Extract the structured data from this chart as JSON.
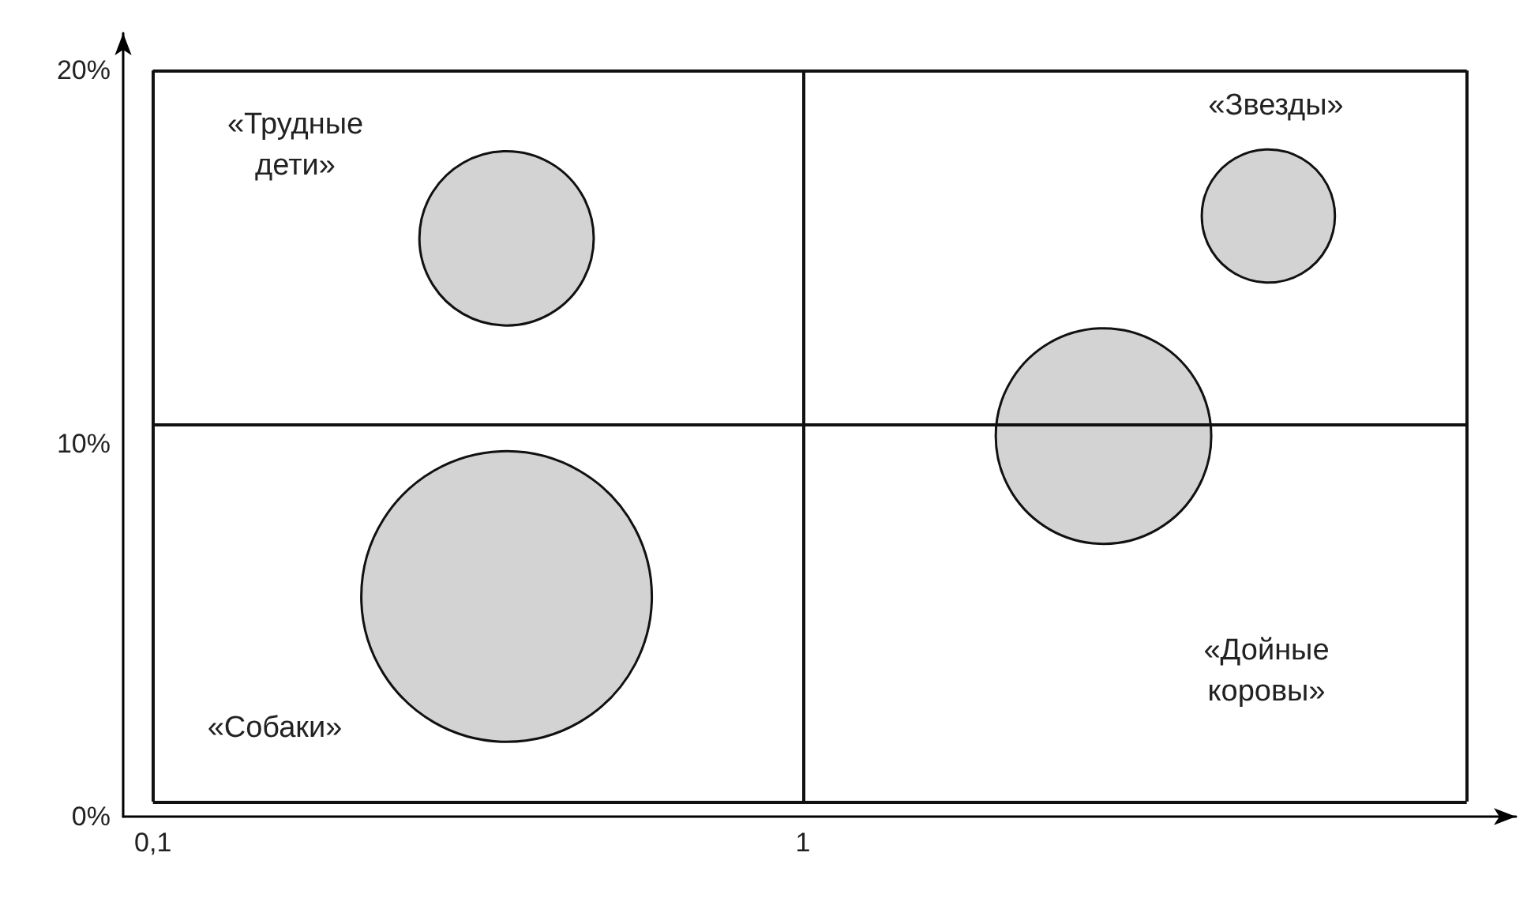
{
  "chart_data": {
    "type": "bubble",
    "x": [
      0.35,
      5.2,
      2.9,
      0.35
    ],
    "values": [
      15.5,
      16.1,
      10.2,
      5.9
    ],
    "sizes": [
      0.36,
      0.21,
      0.55,
      1
    ],
    "color": "#d3d3d3",
    "log": "x",
    "xlim": [
      0.09,
      12.5
    ],
    "xticks": [
      {
        "value": 0.1,
        "label": "0,1"
      },
      1
    ],
    "ylim": [
      0,
      21
    ],
    "yticks": [
      {
        "value": 0,
        "label": "0%"
      },
      {
        "value": 10,
        "label": "10%"
      },
      {
        "value": 20,
        "label": "20%"
      }
    ],
    "grid": false,
    "ref_lines": [
      {
        "axis": "x",
        "value": 0.1
      },
      {
        "axis": "x",
        "value": 1
      },
      {
        "axis": "x",
        "value": 10.5
      },
      {
        "axis": "y",
        "value": 0.4
      },
      {
        "axis": "y",
        "value": 10.5
      },
      {
        "axis": "y",
        "value": 20
      }
    ],
    "annotations": [
      "«Трудные\nдети»",
      "«Звезды»",
      "«Дойные\nкоровы»",
      "«Собаки»"
    ]
  }
}
